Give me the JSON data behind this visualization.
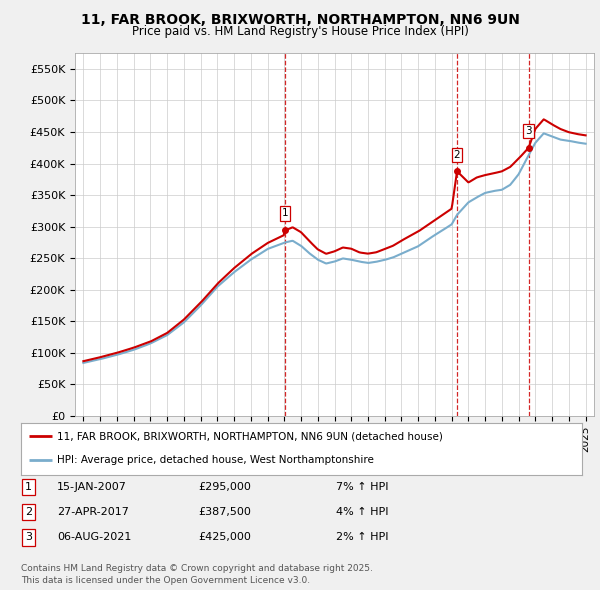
{
  "title_line1": "11, FAR BROOK, BRIXWORTH, NORTHAMPTON, NN6 9UN",
  "title_line2": "Price paid vs. HM Land Registry's House Price Index (HPI)",
  "ylabel_ticks": [
    "£0",
    "£50K",
    "£100K",
    "£150K",
    "£200K",
    "£250K",
    "£300K",
    "£350K",
    "£400K",
    "£450K",
    "£500K",
    "£550K"
  ],
  "ytick_values": [
    0,
    50000,
    100000,
    150000,
    200000,
    250000,
    300000,
    350000,
    400000,
    450000,
    500000,
    550000
  ],
  "xlim": [
    1994.5,
    2025.5
  ],
  "ylim": [
    0,
    575000
  ],
  "sale_dates": [
    2007.04,
    2017.32,
    2021.59
  ],
  "sale_prices": [
    295000,
    387500,
    425000
  ],
  "sale_labels": [
    "1",
    "2",
    "3"
  ],
  "vline_color": "#cc0000",
  "hpi_color": "#7aadcc",
  "sale_line_color": "#cc0000",
  "legend_label_red": "11, FAR BROOK, BRIXWORTH, NORTHAMPTON, NN6 9UN (detached house)",
  "legend_label_blue": "HPI: Average price, detached house, West Northamptonshire",
  "table_entries": [
    {
      "label": "1",
      "date": "15-JAN-2007",
      "price": "£295,000",
      "change": "7% ↑ HPI"
    },
    {
      "label": "2",
      "date": "27-APR-2017",
      "price": "£387,500",
      "change": "4% ↑ HPI"
    },
    {
      "label": "3",
      "date": "06-AUG-2021",
      "price": "£425,000",
      "change": "2% ↑ HPI"
    }
  ],
  "footer": "Contains HM Land Registry data © Crown copyright and database right 2025.\nThis data is licensed under the Open Government Licence v3.0.",
  "bg_color": "#f0f0f0",
  "plot_bg_color": "#ffffff",
  "grid_color": "#cccccc"
}
